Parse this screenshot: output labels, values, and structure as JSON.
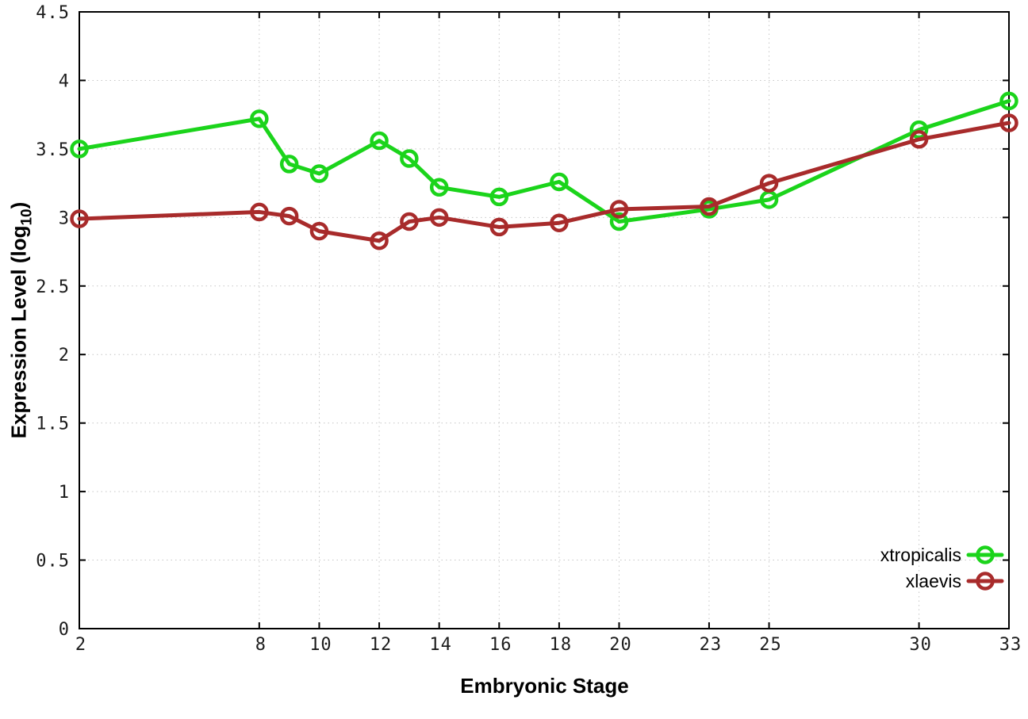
{
  "chart_data": {
    "type": "line",
    "title": "",
    "xlabel": "Embryonic Stage",
    "ylabel": {
      "prefix": "Expression Level (log",
      "sub": "10",
      "suffix": ")"
    },
    "x": [
      2,
      8,
      9,
      10,
      12,
      13,
      14,
      16,
      18,
      20,
      23,
      25,
      30,
      33
    ],
    "series": [
      {
        "name": "xtropicalis",
        "color": "#1bd41b",
        "values": [
          3.5,
          3.72,
          3.39,
          3.32,
          3.56,
          3.43,
          3.22,
          3.15,
          3.26,
          2.97,
          3.06,
          3.13,
          3.64,
          3.85
        ]
      },
      {
        "name": "xlaevis",
        "color": "#a82b2b",
        "values": [
          2.99,
          3.04,
          3.01,
          2.9,
          2.83,
          2.97,
          3.0,
          2.93,
          2.96,
          3.06,
          3.08,
          3.25,
          3.57,
          3.69
        ]
      }
    ],
    "xlim": [
      2,
      33
    ],
    "ylim": [
      0,
      4.5
    ],
    "x_ticks": [
      2,
      8,
      10,
      12,
      14,
      16,
      18,
      20,
      23,
      25,
      30,
      33
    ],
    "x_tick_labels": [
      "2",
      "8",
      "10",
      "12",
      "14",
      "16",
      "18",
      "20",
      "23",
      "25",
      "30",
      "33"
    ],
    "y_ticks": [
      0,
      0.5,
      1,
      1.5,
      2,
      2.5,
      3,
      3.5,
      4,
      4.5
    ],
    "y_tick_labels": [
      "0",
      "0.5",
      "1",
      "1.5",
      "2",
      "2.5",
      "3",
      "3.5",
      "4",
      "4.5"
    ],
    "grid": true,
    "legend_position": "inside-bottom-right",
    "legend_labels": [
      "xtropicalis",
      "xlaevis"
    ]
  },
  "colors": {
    "background": "#ffffff",
    "axis": "#000000",
    "grid": "#c6c6c6",
    "tick_label": "#1c1c1c"
  }
}
